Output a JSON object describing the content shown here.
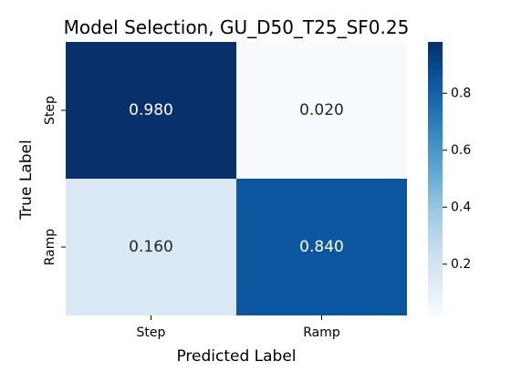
{
  "chart_data": {
    "type": "heatmap",
    "title": "Model Selection, GU_D50_T25_SF0.25",
    "xlabel": "Predicted Label",
    "ylabel": "True Label",
    "x_categories": [
      "Step",
      "Ramp"
    ],
    "y_categories": [
      "Step",
      "Ramp"
    ],
    "values": [
      [
        0.98,
        0.02
      ],
      [
        0.16,
        0.84
      ]
    ],
    "value_labels": [
      [
        "0.980",
        "0.020"
      ],
      [
        "0.160",
        "0.840"
      ]
    ],
    "colormap": "Blues",
    "colorbar": {
      "range": [
        0.02,
        0.98
      ],
      "ticks": [
        0.2,
        0.4,
        0.6,
        0.8
      ],
      "tick_labels": [
        "0.2",
        "0.4",
        "0.6",
        "0.8"
      ]
    },
    "grid": false
  }
}
